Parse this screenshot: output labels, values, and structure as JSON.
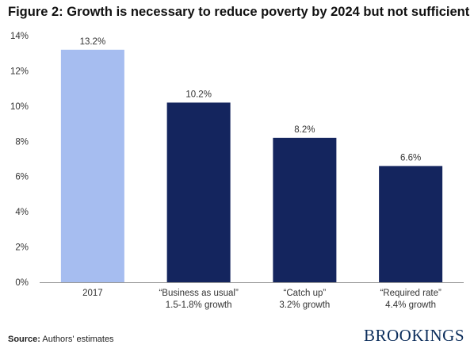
{
  "title": "Figure 2: Growth is necessary to reduce poverty by 2024 but not sufficient",
  "source_label": "Source:",
  "source_text": "Authors' estimates",
  "brand": "BROOKINGS",
  "colors": {
    "light_bar": "#a6bdf0",
    "dark_bar": "#14255e",
    "axis": "#999999"
  },
  "chart_data": {
    "type": "bar",
    "categories": [
      [
        "2017"
      ],
      [
        "“Business as usual”",
        "1.5-1.8% growth"
      ],
      [
        "“Catch up”",
        "3.2% growth"
      ],
      [
        "“Required rate”",
        "4.4% growth"
      ]
    ],
    "values": [
      13.2,
      10.2,
      8.2,
      6.6
    ],
    "value_labels": [
      "13.2%",
      "10.2%",
      "8.2%",
      "6.6%"
    ],
    "bar_colors": [
      "#a6bdf0",
      "#14255e",
      "#14255e",
      "#14255e"
    ],
    "ylim": [
      0,
      14
    ],
    "yticks": [
      0,
      2,
      4,
      6,
      8,
      10,
      12,
      14
    ],
    "ytick_labels": [
      "0%",
      "2%",
      "4%",
      "6%",
      "8%",
      "10%",
      "12%",
      "14%"
    ],
    "grid": false,
    "xlabel": "",
    "ylabel": ""
  }
}
